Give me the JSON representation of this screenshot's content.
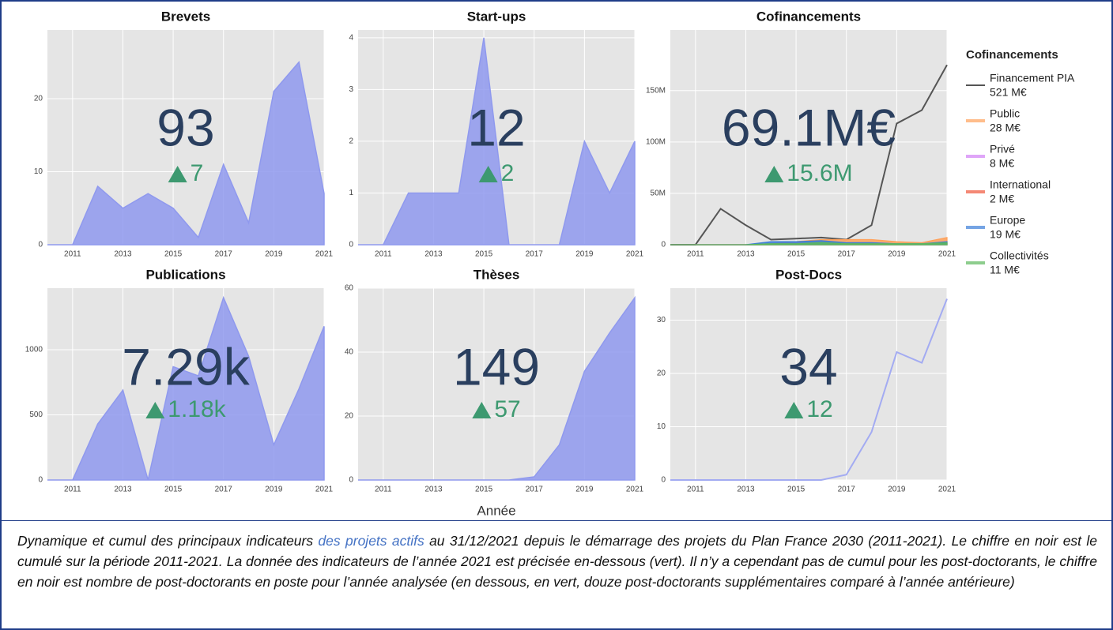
{
  "xaxis_title": "Année",
  "caption": {
    "before": "Dynamique et cumul des principaux indicateurs ",
    "link": "des projets actifs",
    "after": " au 31/12/2021 depuis le démarrage des projets du Plan France 2030 (2011-2021). Le chiffre en noir est le cumulé sur la période 2011-2021. La donnée des indicateurs de l’année 2021 est précisée en-dessous (vert). Il n’y a cependant pas de cumul pour les post-doctorants, le chiffre en noir est nombre de post-doctorants en poste pour l’année analysée (en dessous, en vert, douze post-doctorants supplémentaires comparé à l’année antérieure)"
  },
  "chart_data": [
    {
      "type": "area",
      "title": "Brevets",
      "big": "93",
      "delta": "7",
      "color": "#8f99ee",
      "x": [
        2010,
        2011,
        2012,
        2013,
        2014,
        2015,
        2016,
        2017,
        2018,
        2019,
        2020,
        2021
      ],
      "values": [
        0,
        0,
        8,
        5,
        7,
        5,
        1,
        11,
        3,
        21,
        25,
        7
      ],
      "xlim": [
        2010,
        2021
      ],
      "xticks": [
        2011,
        2013,
        2015,
        2017,
        2019,
        2021
      ],
      "ylim": [
        0,
        29.4
      ],
      "yticks": [
        0,
        10,
        20
      ],
      "grid": true
    },
    {
      "type": "area",
      "title": "Start-ups",
      "big": "12",
      "delta": "2",
      "color": "#8f99ee",
      "x": [
        2010,
        2011,
        2012,
        2013,
        2014,
        2015,
        2016,
        2017,
        2018,
        2019,
        2020,
        2021
      ],
      "values": [
        0,
        0,
        1,
        1,
        1,
        4,
        0,
        0,
        0,
        2,
        1,
        2
      ],
      "xlim": [
        2010,
        2021
      ],
      "xticks": [
        2011,
        2013,
        2015,
        2017,
        2019,
        2021
      ],
      "ylim": [
        0,
        4.15
      ],
      "yticks": [
        0,
        1,
        2,
        3,
        4
      ],
      "grid": true
    },
    {
      "type": "multi",
      "title": "Cofinancements",
      "big": "69.1M€",
      "delta": "15.6M",
      "legend_title": "Cofinancements",
      "x": [
        2010,
        2011,
        2012,
        2013,
        2014,
        2015,
        2016,
        2017,
        2018,
        2019,
        2020,
        2021
      ],
      "series": [
        {
          "name": "Financement PIA",
          "total": "521 M€",
          "color": "#555555",
          "fill": false,
          "values": [
            0,
            0,
            35000000,
            19000000,
            5000000,
            6000000,
            7000000,
            5000000,
            19000000,
            118000000,
            131000000,
            175000000
          ]
        },
        {
          "name": "Public",
          "total": "28 M€",
          "color": "#ffa15a",
          "fill": true,
          "values": [
            0,
            0,
            0,
            0,
            1000000,
            3000000,
            5000000,
            5000000,
            5000000,
            3000000,
            2000000,
            7000000
          ]
        },
        {
          "name": "Privé",
          "total": "8 M€",
          "color": "#d27ff5",
          "fill": true,
          "values": [
            0,
            0,
            0,
            0,
            0,
            1000000,
            1000000,
            1000000,
            1000000,
            1000000,
            1000000,
            3000000
          ]
        },
        {
          "name": "International",
          "total": "2 M€",
          "color": "#ef553b",
          "fill": true,
          "values": [
            0,
            0,
            0,
            0,
            0,
            0,
            0,
            1000000,
            1000000,
            0,
            0,
            1000000
          ]
        },
        {
          "name": "Europe",
          "total": "19 M€",
          "color": "#3b7dd8",
          "fill": true,
          "values": [
            0,
            0,
            0,
            0,
            3000000,
            3000000,
            4000000,
            2000000,
            2000000,
            1000000,
            1000000,
            3000000
          ]
        },
        {
          "name": "Collectivités",
          "total": "11 M€",
          "color": "#5cb85c",
          "fill": true,
          "values": [
            0,
            0,
            0,
            0,
            1000000,
            1000000,
            2000000,
            1000000,
            1000000,
            1000000,
            1000000,
            2000000
          ]
        }
      ],
      "xlim": [
        2010,
        2021
      ],
      "xticks": [
        2011,
        2013,
        2015,
        2017,
        2019,
        2021
      ],
      "ylim": [
        0,
        209000000
      ],
      "yticks": [
        0,
        {
          "value": 50000000,
          "label": "50M"
        },
        {
          "value": 100000000,
          "label": "100M"
        },
        {
          "value": 150000000,
          "label": "150M"
        }
      ],
      "grid": true
    },
    {
      "type": "area",
      "title": "Publications",
      "big": "7.29k",
      "delta": "1.18k",
      "color": "#8f99ee",
      "x": [
        2010,
        2011,
        2012,
        2013,
        2014,
        2015,
        2016,
        2017,
        2018,
        2019,
        2020,
        2021
      ],
      "values": [
        0,
        0,
        430,
        690,
        0,
        870,
        800,
        1400,
        950,
        270,
        700,
        1180
      ],
      "xlim": [
        2010,
        2021
      ],
      "xticks": [
        2011,
        2013,
        2015,
        2017,
        2019,
        2021
      ],
      "ylim": [
        0,
        1473
      ],
      "yticks": [
        0,
        500,
        1000
      ],
      "grid": true
    },
    {
      "type": "area",
      "title": "Thèses",
      "big": "149",
      "delta": "57",
      "color": "#8f99ee",
      "x": [
        2010,
        2011,
        2012,
        2013,
        2014,
        2015,
        2016,
        2017,
        2018,
        2019,
        2020,
        2021
      ],
      "values": [
        0,
        0,
        0,
        0,
        0,
        0,
        0,
        1,
        11,
        34,
        46,
        57
      ],
      "xlim": [
        2010,
        2021
      ],
      "xticks": [
        2011,
        2013,
        2015,
        2017,
        2019,
        2021
      ],
      "ylim": [
        0,
        60
      ],
      "yticks": [
        0,
        20,
        40,
        60
      ],
      "grid": true
    },
    {
      "type": "line",
      "title": "Post-Docs",
      "big": "34",
      "delta": "12",
      "color": "#a3abf2",
      "x": [
        2010,
        2011,
        2012,
        2013,
        2014,
        2015,
        2016,
        2017,
        2018,
        2019,
        2020,
        2021
      ],
      "values": [
        0,
        0,
        0,
        0,
        0,
        0,
        0,
        1,
        9,
        24,
        22,
        34
      ],
      "xlim": [
        2010,
        2021
      ],
      "xticks": [
        2011,
        2013,
        2015,
        2017,
        2019,
        2021
      ],
      "ylim": [
        0,
        36
      ],
      "yticks": [
        0,
        10,
        20,
        30
      ],
      "grid": true
    }
  ]
}
